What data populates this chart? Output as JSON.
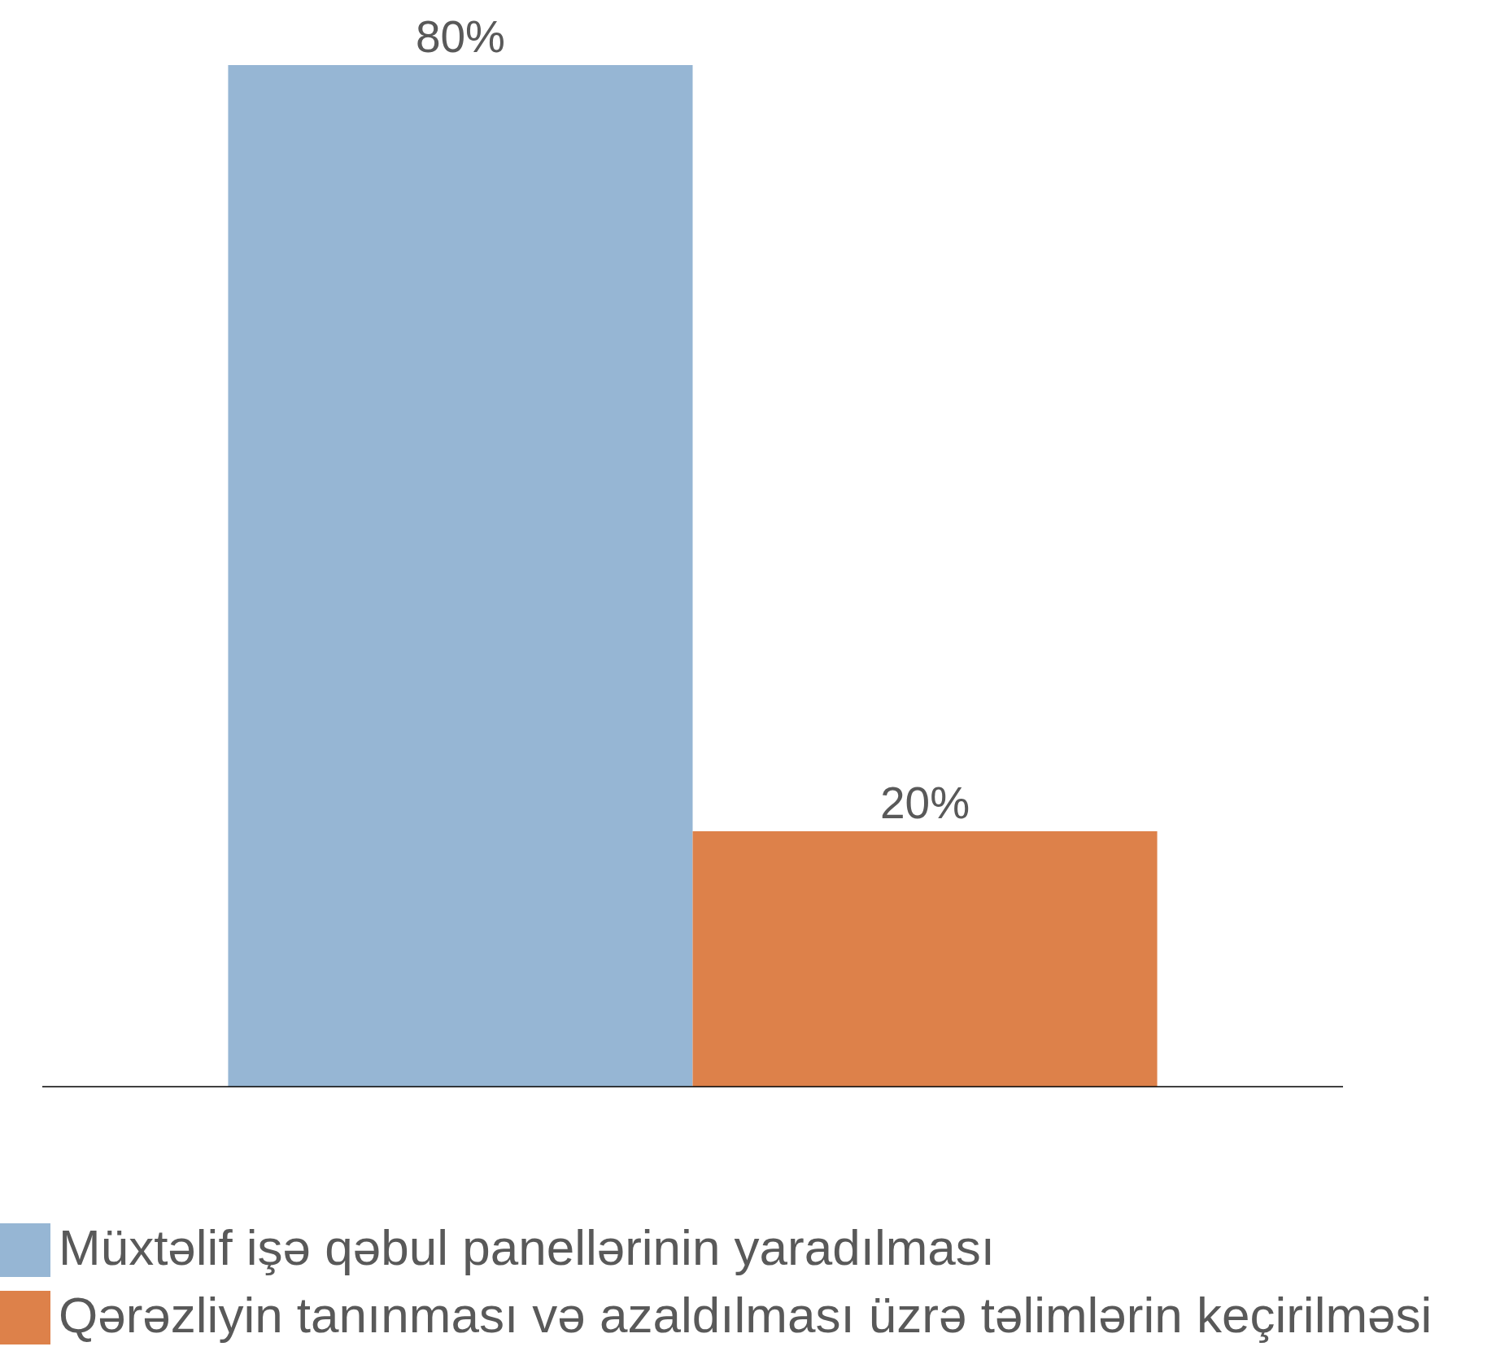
{
  "chart_data": {
    "type": "bar",
    "categories": [
      null
    ],
    "series": [
      {
        "name": "Müxtəlif işə qəbul panellərinin yaradılması",
        "color": "#96b6d4",
        "values": [
          80
        ],
        "value_labels": [
          "80%"
        ]
      },
      {
        "name": "Qərəzliyin tanınması və azaldılması üzrə təlimlərin keçirilməsi",
        "color": "#dd814a",
        "values": [
          20
        ],
        "value_labels": [
          "20%"
        ]
      }
    ],
    "legend": "bottom left"
  }
}
